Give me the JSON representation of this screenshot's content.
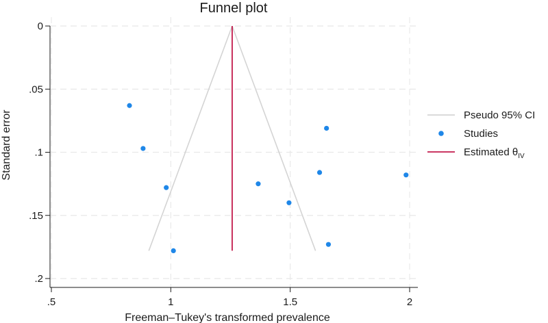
{
  "chart_data": {
    "type": "scatter",
    "title": "Funnel plot",
    "xlabel": "Freeman–Tukey's transformed prevalence",
    "ylabel": "Standard error",
    "xlim": [
      0.5,
      2.0
    ],
    "ylim": [
      0,
      0.2
    ],
    "y_inverted": true,
    "x_ticks": [
      {
        "value": 0.5,
        "label": ".5"
      },
      {
        "value": 1.0,
        "label": "1"
      },
      {
        "value": 1.5,
        "label": "1.5"
      },
      {
        "value": 2.0,
        "label": "2"
      }
    ],
    "y_ticks": [
      {
        "value": 0,
        "label": "0"
      },
      {
        "value": 0.05,
        "label": ".05"
      },
      {
        "value": 0.1,
        "label": ".1"
      },
      {
        "value": 0.15,
        "label": ".15"
      },
      {
        "value": 0.2,
        "label": ".2"
      }
    ],
    "grid": true,
    "legend_position": "right",
    "estimate": {
      "x": 1.257,
      "se_max": 0.178
    },
    "pseudo_ci": {
      "apex": [
        1.257,
        0
      ],
      "left_base": [
        0.908,
        0.178
      ],
      "right_base": [
        1.606,
        0.178
      ]
    },
    "studies": [
      {
        "x": 0.827,
        "y": 0.063
      },
      {
        "x": 0.884,
        "y": 0.097
      },
      {
        "x": 0.981,
        "y": 0.128
      },
      {
        "x": 1.011,
        "y": 0.178
      },
      {
        "x": 1.366,
        "y": 0.125
      },
      {
        "x": 1.495,
        "y": 0.14
      },
      {
        "x": 1.623,
        "y": 0.116
      },
      {
        "x": 1.652,
        "y": 0.081
      },
      {
        "x": 1.66,
        "y": 0.173
      },
      {
        "x": 1.985,
        "y": 0.118
      }
    ],
    "legend": [
      {
        "label": "Pseudo 95% CI",
        "marker": "line",
        "color": "#d4d4d4"
      },
      {
        "label": "Studies",
        "marker": "dot",
        "color": "#1f87e8"
      },
      {
        "label": "Estimated θ",
        "subscript": "IV",
        "marker": "line",
        "color": "#c3194b"
      }
    ],
    "colors": {
      "pseudo_ci": "#d4d4d4",
      "studies": "#1f87e8",
      "estimate": "#c3194b",
      "grid": "#e8e8e8",
      "axis": "#1a1a1a"
    }
  }
}
